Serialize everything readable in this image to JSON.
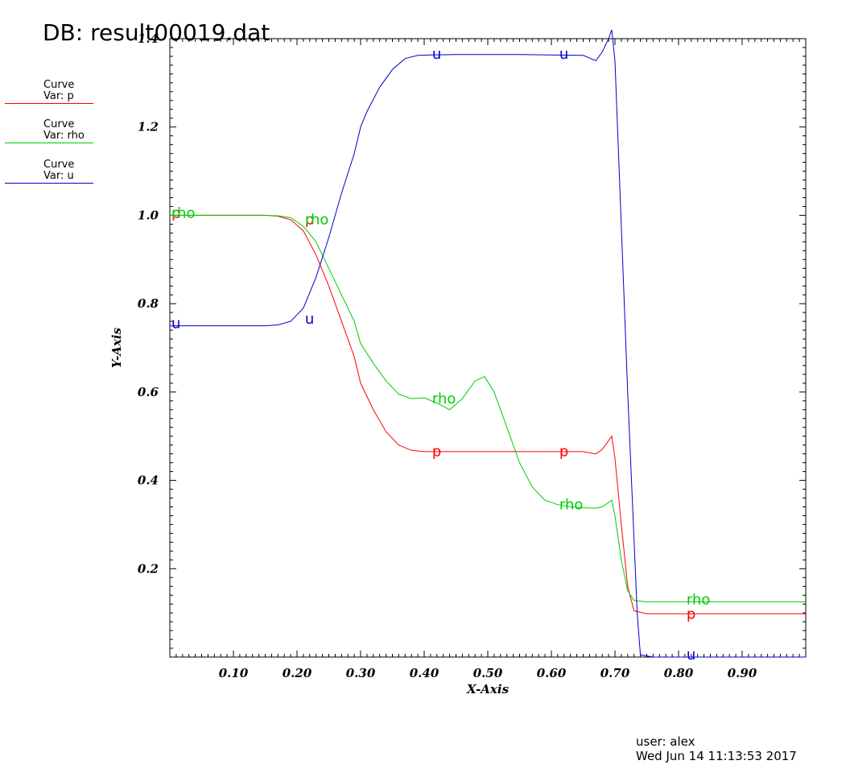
{
  "title": "DB: result00019.dat",
  "legend": [
    {
      "line1": "Curve",
      "line2": "Var: p",
      "color": "#ff0000"
    },
    {
      "line1": "Curve",
      "line2": "Var: rho",
      "color": "#00cc00"
    },
    {
      "line1": "Curve",
      "line2": "Var: u",
      "color": "#0000cc"
    }
  ],
  "footer": {
    "user": "user: alex",
    "timestamp": "Wed Jun 14 11:13:53 2017"
  },
  "chart_data": {
    "type": "line",
    "xlabel": "X-Axis",
    "ylabel": "Y-Axis",
    "xlim": [
      0.0,
      1.0
    ],
    "ylim": [
      0.0,
      1.4
    ],
    "xticks": [
      "0.10",
      "0.20",
      "0.30",
      "0.40",
      "0.50",
      "0.60",
      "0.70",
      "0.80",
      "0.90"
    ],
    "yticks": [
      "0.2",
      "0.4",
      "0.6",
      "0.8",
      "1.0",
      "1.2",
      "1.4"
    ],
    "series": [
      {
        "name": "p",
        "color": "#ff0000",
        "x": [
          0.0,
          0.15,
          0.17,
          0.19,
          0.21,
          0.23,
          0.25,
          0.27,
          0.29,
          0.3,
          0.32,
          0.34,
          0.36,
          0.38,
          0.4,
          0.45,
          0.5,
          0.55,
          0.6,
          0.65,
          0.67,
          0.68,
          0.69,
          0.695,
          0.7,
          0.71,
          0.72,
          0.73,
          0.75,
          1.0
        ],
        "y": [
          1.0,
          1.0,
          0.998,
          0.99,
          0.965,
          0.91,
          0.84,
          0.76,
          0.68,
          0.62,
          0.56,
          0.51,
          0.48,
          0.468,
          0.465,
          0.465,
          0.465,
          0.465,
          0.465,
          0.465,
          0.46,
          0.47,
          0.49,
          0.5,
          0.45,
          0.3,
          0.16,
          0.105,
          0.098,
          0.098
        ],
        "labels": [
          {
            "x": 0.0,
            "y": 1.0
          },
          {
            "x": 0.21,
            "y": 0.985
          },
          {
            "x": 0.41,
            "y": 0.46
          },
          {
            "x": 0.61,
            "y": 0.46
          },
          {
            "x": 0.81,
            "y": 0.092
          }
        ]
      },
      {
        "name": "rho",
        "color": "#00cc00",
        "x": [
          0.0,
          0.15,
          0.17,
          0.19,
          0.21,
          0.23,
          0.25,
          0.27,
          0.29,
          0.3,
          0.32,
          0.34,
          0.36,
          0.38,
          0.4,
          0.42,
          0.44,
          0.46,
          0.48,
          0.495,
          0.51,
          0.53,
          0.55,
          0.57,
          0.59,
          0.61,
          0.63,
          0.65,
          0.67,
          0.68,
          0.69,
          0.695,
          0.7,
          0.71,
          0.72,
          0.73,
          0.75,
          1.0
        ],
        "y": [
          1.0,
          1.0,
          0.999,
          0.995,
          0.975,
          0.94,
          0.88,
          0.82,
          0.76,
          0.71,
          0.665,
          0.625,
          0.595,
          0.585,
          0.587,
          0.575,
          0.56,
          0.585,
          0.625,
          0.635,
          0.6,
          0.52,
          0.44,
          0.385,
          0.355,
          0.345,
          0.34,
          0.338,
          0.337,
          0.34,
          0.35,
          0.355,
          0.32,
          0.22,
          0.15,
          0.128,
          0.125,
          0.125
        ],
        "labels": [
          {
            "x": 0.0,
            "y": 1.0
          },
          {
            "x": 0.21,
            "y": 0.985
          },
          {
            "x": 0.41,
            "y": 0.58
          },
          {
            "x": 0.61,
            "y": 0.34
          },
          {
            "x": 0.81,
            "y": 0.125
          }
        ]
      },
      {
        "name": "u",
        "color": "#0000cc",
        "x": [
          0.0,
          0.15,
          0.17,
          0.19,
          0.21,
          0.23,
          0.25,
          0.27,
          0.29,
          0.3,
          0.31,
          0.33,
          0.35,
          0.37,
          0.39,
          0.41,
          0.45,
          0.5,
          0.55,
          0.6,
          0.65,
          0.67,
          0.68,
          0.69,
          0.695,
          0.7,
          0.72,
          0.735,
          0.74,
          0.76,
          0.77,
          1.0
        ],
        "y": [
          0.75,
          0.75,
          0.752,
          0.76,
          0.79,
          0.86,
          0.95,
          1.05,
          1.14,
          1.2,
          1.235,
          1.29,
          1.33,
          1.355,
          1.362,
          1.363,
          1.364,
          1.364,
          1.364,
          1.363,
          1.362,
          1.35,
          1.37,
          1.4,
          1.42,
          1.35,
          0.6,
          0.1,
          0.005,
          0.0,
          0.0,
          0.0
        ],
        "labels": [
          {
            "x": 0.0,
            "y": 0.75
          },
          {
            "x": 0.21,
            "y": 0.76
          },
          {
            "x": 0.41,
            "y": 1.36
          },
          {
            "x": 0.61,
            "y": 1.36
          },
          {
            "x": 0.81,
            "y": 0.0
          }
        ]
      }
    ]
  }
}
